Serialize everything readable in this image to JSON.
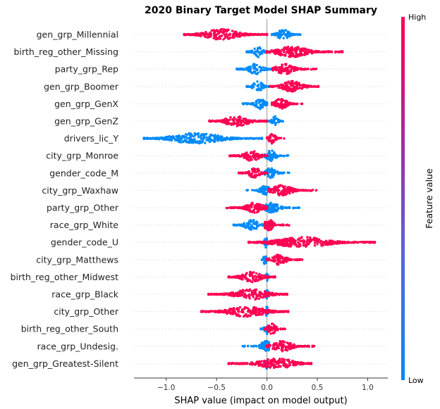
{
  "chart_data": {
    "type": "scatter",
    "title": "2020 Binary Target Model SHAP Summary",
    "xlabel": "SHAP value (impact on model output)",
    "xlim": [
      -1.32,
      1.2
    ],
    "xticks": [
      -1.0,
      -0.5,
      0.0,
      0.5,
      1.0
    ],
    "xtick_labels": [
      "−1.0",
      "−0.5",
      "0.0",
      "0.5",
      "1.0"
    ],
    "colorbar": {
      "label": "Feature value",
      "high_label": "High",
      "low_label": "Low",
      "high_color": "#ff0052",
      "low_color": "#008bfb"
    },
    "features": [
      {
        "name": "gen_grp_Millennial",
        "low_range": [
          0.05,
          0.33
        ],
        "low_center": 0.16,
        "high_range": [
          -0.82,
          0.0
        ],
        "high_center": -0.45
      },
      {
        "name": "birth_reg_other_Missing",
        "low_range": [
          -0.2,
          0.02
        ],
        "low_center": -0.09,
        "high_range": [
          0.0,
          0.75
        ],
        "high_center": 0.25
      },
      {
        "name": "party_grp_Rep",
        "low_range": [
          -0.3,
          0.04
        ],
        "low_center": -0.11,
        "high_range": [
          0.06,
          0.49
        ],
        "high_center": 0.18
      },
      {
        "name": "gen_grp_Boomer",
        "low_range": [
          -0.2,
          0.02
        ],
        "low_center": -0.09,
        "high_range": [
          0.03,
          0.51
        ],
        "high_center": 0.25
      },
      {
        "name": "gen_grp_GenX",
        "low_range": [
          -0.24,
          0.0
        ],
        "low_center": -0.07,
        "high_range": [
          0.05,
          0.35
        ],
        "high_center": 0.14
      },
      {
        "name": "gen_grp_GenZ",
        "low_range": [
          0.02,
          0.16
        ],
        "low_center": 0.08,
        "high_range": [
          -0.57,
          0.0
        ],
        "high_center": -0.3
      },
      {
        "name": "drivers_lic_Y",
        "low_range": [
          -1.22,
          -0.05
        ],
        "low_center": -0.7,
        "high_range": [
          0.0,
          0.17
        ],
        "high_center": 0.05
      },
      {
        "name": "city_grp_Monroe",
        "low_range": [
          -0.02,
          0.21
        ],
        "low_center": 0.04,
        "high_range": [
          -0.37,
          0.0
        ],
        "high_center": -0.15
      },
      {
        "name": "gender_code_M",
        "low_range": [
          -0.02,
          0.22
        ],
        "low_center": 0.04,
        "high_range": [
          -0.28,
          0.0
        ],
        "high_center": -0.12
      },
      {
        "name": "city_grp_Waxhaw",
        "low_range": [
          -0.2,
          0.02
        ],
        "low_center": -0.02,
        "high_range": [
          0.02,
          0.49
        ],
        "high_center": 0.15
      },
      {
        "name": "party_grp_Other",
        "low_range": [
          -0.02,
          0.32
        ],
        "low_center": 0.05,
        "high_range": [
          -0.4,
          0.0
        ],
        "high_center": -0.12
      },
      {
        "name": "race_grp_White",
        "low_range": [
          -0.33,
          0.0
        ],
        "low_center": -0.15,
        "high_range": [
          -0.02,
          0.22
        ],
        "high_center": 0.02
      },
      {
        "name": "gender_code_U",
        "low_range": [
          -0.05,
          0.02
        ],
        "low_center": -0.01,
        "high_range": [
          -0.18,
          1.07
        ],
        "high_center": 0.35
      },
      {
        "name": "city_grp_Matthews",
        "low_range": [
          -0.05,
          0.02
        ],
        "low_center": -0.02,
        "high_range": [
          0.0,
          0.35
        ],
        "high_center": 0.12
      },
      {
        "name": "birth_reg_other_Midwest",
        "low_range": [
          -0.02,
          0.03
        ],
        "low_center": 0.0,
        "high_range": [
          -0.38,
          0.08
        ],
        "high_center": -0.15
      },
      {
        "name": "race_grp_Black",
        "low_range": [
          -0.02,
          0.03
        ],
        "low_center": 0.0,
        "high_range": [
          -0.58,
          0.2
        ],
        "high_center": -0.15
      },
      {
        "name": "city_grp_Other",
        "low_range": [
          -0.02,
          0.04
        ],
        "low_center": 0.0,
        "high_range": [
          -0.65,
          0.21
        ],
        "high_center": -0.2
      },
      {
        "name": "birth_reg_other_South",
        "low_range": [
          -0.06,
          0.05
        ],
        "low_center": 0.0,
        "high_range": [
          -0.02,
          0.18
        ],
        "high_center": 0.05
      },
      {
        "name": "race_grp_Undesig.",
        "low_range": [
          -0.24,
          0.02
        ],
        "low_center": -0.01,
        "high_range": [
          0.0,
          0.47
        ],
        "high_center": 0.15
      },
      {
        "name": "gen_grp_Greatest-Silent",
        "low_range": [
          -0.03,
          0.03
        ],
        "low_center": 0.0,
        "high_range": [
          -0.38,
          0.44
        ],
        "high_center": 0.1
      }
    ]
  }
}
